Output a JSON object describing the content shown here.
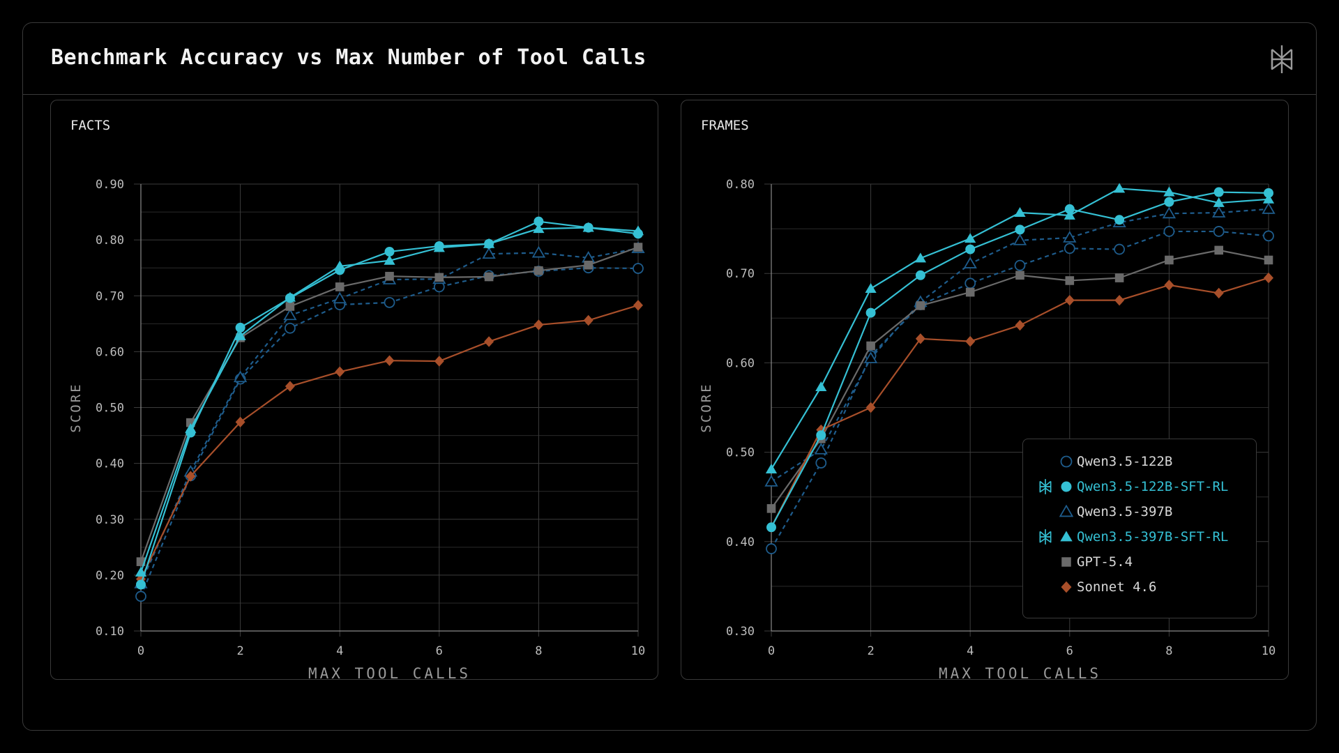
{
  "header": {
    "title": "Benchmark Accuracy vs Max Number of Tool Calls",
    "logo_icon": "perplexity-logo-icon"
  },
  "colors": {
    "Qwen3.5-122B": "#1e5c8c",
    "Qwen3.5-122B-SFT-RL": "#35c0d4",
    "Qwen3.5-397B": "#1e5c8c",
    "Qwen3.5-397B-SFT-RL": "#35c0d4",
    "GPT-5.4": "#6a6a6a",
    "Sonnet 4.6": "#a84f2a"
  },
  "legend": {
    "items": [
      {
        "label": "Qwen3.5-122B",
        "marker": "circle-open",
        "highlighted": false
      },
      {
        "label": "Qwen3.5-122B-SFT-RL",
        "marker": "circle-filled",
        "highlighted": true,
        "badge_icon": "perplexity-logo-icon"
      },
      {
        "label": "Qwen3.5-397B",
        "marker": "triangle-open",
        "highlighted": false
      },
      {
        "label": "Qwen3.5-397B-SFT-RL",
        "marker": "triangle-filled",
        "highlighted": true,
        "badge_icon": "perplexity-logo-icon"
      },
      {
        "label": "GPT-5.4",
        "marker": "square-filled",
        "highlighted": false
      },
      {
        "label": "Sonnet 4.6",
        "marker": "diamond-filled",
        "highlighted": false
      }
    ]
  },
  "chart_data": [
    {
      "type": "line",
      "title": "FACTS",
      "xlabel": "MAX TOOL CALLS",
      "ylabel": "SCORE",
      "x": [
        0,
        1,
        2,
        3,
        4,
        5,
        6,
        7,
        8,
        9,
        10
      ],
      "x_ticks": [
        "0",
        "2",
        "4",
        "6",
        "8",
        "10"
      ],
      "y_ticks": [
        "0.10",
        "0.20",
        "0.30",
        "0.40",
        "0.50",
        "0.60",
        "0.70",
        "0.80",
        "0.90"
      ],
      "xlim": [
        0,
        10
      ],
      "ylim": [
        0.1,
        0.9
      ],
      "grid": true,
      "series": [
        {
          "name": "Qwen3.5-122B",
          "dashed": true,
          "marker": "circle-open",
          "values": [
            0.162,
            0.378,
            0.551,
            0.642,
            0.684,
            0.688,
            0.716,
            0.736,
            0.744,
            0.75,
            0.749
          ]
        },
        {
          "name": "Qwen3.5-122B-SFT-RL",
          "dashed": false,
          "marker": "circle-filled",
          "values": [
            0.183,
            0.455,
            0.643,
            0.696,
            0.746,
            0.779,
            0.789,
            0.793,
            0.833,
            0.822,
            0.811
          ]
        },
        {
          "name": "Qwen3.5-397B",
          "dashed": true,
          "marker": "triangle-open",
          "values": [
            0.185,
            0.385,
            0.554,
            0.665,
            0.695,
            0.729,
            0.73,
            0.775,
            0.777,
            0.768,
            0.785
          ]
        },
        {
          "name": "Qwen3.5-397B-SFT-RL",
          "dashed": false,
          "marker": "triangle-filled",
          "values": [
            0.205,
            0.462,
            0.628,
            0.697,
            0.753,
            0.763,
            0.786,
            0.793,
            0.82,
            0.822,
            0.816
          ]
        },
        {
          "name": "GPT-5.4",
          "dashed": false,
          "marker": "square-filled",
          "values": [
            0.224,
            0.473,
            0.625,
            0.681,
            0.716,
            0.735,
            0.733,
            0.734,
            0.745,
            0.755,
            0.787
          ]
        },
        {
          "name": "Sonnet 4.6",
          "dashed": false,
          "marker": "diamond-filled",
          "values": [
            0.193,
            0.377,
            0.474,
            0.538,
            0.564,
            0.584,
            0.583,
            0.618,
            0.648,
            0.656,
            0.683
          ]
        }
      ]
    },
    {
      "type": "line",
      "title": "FRAMES",
      "xlabel": "MAX TOOL CALLS",
      "ylabel": "SCORE",
      "x": [
        0,
        1,
        2,
        3,
        4,
        5,
        6,
        7,
        8,
        9,
        10
      ],
      "x_ticks": [
        "0",
        "2",
        "4",
        "6",
        "8",
        "10"
      ],
      "y_ticks": [
        "0.30",
        "0.40",
        "0.50",
        "0.60",
        "0.70",
        "0.80"
      ],
      "xlim": [
        0,
        10
      ],
      "ylim": [
        0.3,
        0.8
      ],
      "grid": true,
      "series": [
        {
          "name": "Qwen3.5-122B",
          "dashed": true,
          "marker": "circle-open",
          "values": [
            0.392,
            0.488,
            0.608,
            0.665,
            0.689,
            0.709,
            0.728,
            0.727,
            0.747,
            0.747,
            0.742
          ]
        },
        {
          "name": "Qwen3.5-122B-SFT-RL",
          "dashed": false,
          "marker": "circle-filled",
          "values": [
            0.416,
            0.519,
            0.656,
            0.698,
            0.727,
            0.749,
            0.772,
            0.76,
            0.78,
            0.791,
            0.79
          ]
        },
        {
          "name": "Qwen3.5-397B",
          "dashed": true,
          "marker": "triangle-open",
          "values": [
            0.467,
            0.503,
            0.605,
            0.668,
            0.711,
            0.737,
            0.74,
            0.757,
            0.767,
            0.768,
            0.772
          ]
        },
        {
          "name": "Qwen3.5-397B-SFT-RL",
          "dashed": false,
          "marker": "triangle-filled",
          "values": [
            0.481,
            0.573,
            0.683,
            0.717,
            0.739,
            0.768,
            0.765,
            0.795,
            0.791,
            0.779,
            0.783
          ]
        },
        {
          "name": "GPT-5.4",
          "dashed": false,
          "marker": "square-filled",
          "values": [
            0.437,
            0.515,
            0.619,
            0.664,
            0.679,
            0.698,
            0.692,
            0.695,
            0.715,
            0.726,
            0.715
          ]
        },
        {
          "name": "Sonnet 4.6",
          "dashed": false,
          "marker": "diamond-filled",
          "values": [
            0.416,
            0.525,
            0.55,
            0.627,
            0.624,
            0.642,
            0.67,
            0.67,
            0.687,
            0.678,
            0.695
          ]
        }
      ]
    }
  ]
}
